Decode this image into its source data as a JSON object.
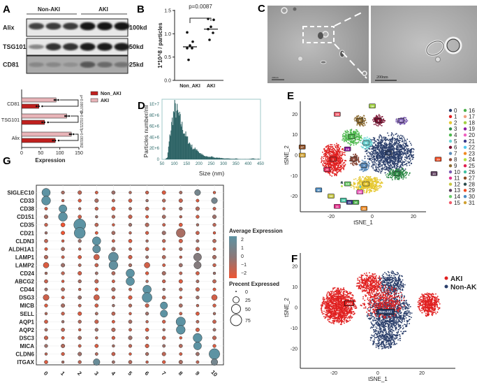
{
  "panels": {
    "A": "A",
    "B": "B",
    "C": "C",
    "D": "D",
    "E": "E",
    "F": "F",
    "G": "G"
  },
  "chart_data": [
    {
      "id": "A_blot",
      "type": "table",
      "groups": [
        "Non-AKI",
        "AKI"
      ],
      "rows": [
        {
          "protein": "Alix",
          "size": "100kd",
          "band_intensity": [
            0.7,
            0.75,
            0.75,
            0.95,
            0.95,
            0.95
          ]
        },
        {
          "protein": "TSG101",
          "size": "50kd",
          "band_intensity": [
            0.35,
            0.8,
            0.8,
            0.9,
            0.9,
            0.9
          ]
        },
        {
          "protein": "CD81",
          "size": "25kd",
          "band_intensity": [
            0.35,
            0.35,
            0.3,
            0.6,
            0.5,
            0.45
          ]
        }
      ]
    },
    {
      "id": "A_bar",
      "type": "bar",
      "orientation": "horizontal",
      "categories": [
        "CD81",
        "TSG101",
        "Alix"
      ],
      "series": [
        {
          "name": "Non_AKI",
          "color": "#c0201e",
          "values": [
            45,
            60,
            88
          ]
        },
        {
          "name": "AKI",
          "color": "#e8b4b8",
          "values": [
            90,
            118,
            130
          ]
        }
      ],
      "pvalues": [
        "p=0.000773",
        "p=0.012217",
        "p=0.001062"
      ],
      "xlabel": "Expression",
      "xlim": [
        0,
        150
      ],
      "xticks": [
        "0",
        "50",
        "100",
        "150"
      ],
      "legend": "top-right"
    },
    {
      "id": "B",
      "type": "scatter",
      "categories": [
        "Non_AKI",
        "AKI"
      ],
      "series": [
        {
          "name": "Non_AKI",
          "values": [
            1.03,
            0.83,
            0.75,
            0.69,
            0.69,
            0.44
          ],
          "median": 0.72
        },
        {
          "name": "AKI",
          "values": [
            1.32,
            1.3,
            1.15,
            1.1,
            1.02,
            0.87
          ],
          "median": 1.1
        }
      ],
      "ylabel": "1*10^8 / particles",
      "ylim": [
        0,
        1.5
      ],
      "yticks": [
        "0.0",
        "0.5",
        "1.0",
        "1.5"
      ],
      "annotation": "p=0.0087"
    },
    {
      "id": "C",
      "type": "image",
      "scale_bars": [
        "200nm",
        "200nm"
      ]
    },
    {
      "id": "D",
      "type": "bar",
      "xlabel": "Size (nm)",
      "ylabel": "Particles number/ml",
      "xlim": [
        50,
        450
      ],
      "ylim": [
        0,
        10000000
      ],
      "xticks": [
        "50",
        "100",
        "150",
        "200",
        "250",
        "300",
        "350",
        "400",
        "450"
      ],
      "yticks": [
        "0",
        "2E+6",
        "4E+6",
        "6E+6",
        "8E+6",
        "1E+7"
      ],
      "bin_start": 50,
      "bin_width": 10,
      "values_millions": [
        0,
        0,
        0.3,
        4,
        7,
        9.2,
        8.6,
        7.4,
        6,
        4.8,
        3.8,
        3,
        2.3,
        1.8,
        1.9,
        1.2,
        0.9,
        0.6,
        0.5,
        0.45,
        0.5,
        0.35,
        0.3,
        0.3,
        0.2,
        0.15,
        0.2,
        0.15,
        0.1,
        0.1,
        0.15,
        0.05,
        0.05,
        0.05,
        0.05,
        0.05,
        0.1,
        0.15,
        0.05,
        0.1
      ],
      "color": "#2e6466"
    },
    {
      "id": "E",
      "type": "scatter",
      "xlabel": "tSNE_1",
      "ylabel": "tSNE_2",
      "xticks": [
        "-20",
        "0",
        "20"
      ],
      "yticks": [
        "20",
        "10",
        "0",
        "-10",
        "-20"
      ],
      "legend": "right",
      "clusters": [
        {
          "id": "0",
          "color": "#2b3f6b",
          "center": [
            8,
            1
          ],
          "spread": [
            12,
            10
          ],
          "n": 1400
        },
        {
          "id": "1",
          "color": "#e02020",
          "center": [
            -19,
            -2
          ],
          "spread": [
            6,
            8
          ],
          "n": 700
        },
        {
          "id": "2",
          "color": "#e6c832",
          "center": [
            -3,
            -14
          ],
          "spread": [
            8,
            4
          ],
          "n": 500
        },
        {
          "id": "3",
          "color": "#2e8b47",
          "center": [
            12,
            -9
          ],
          "spread": [
            6,
            3
          ],
          "n": 220
        },
        {
          "id": "4",
          "color": "#4cb84c",
          "center": [
            -10,
            9
          ],
          "spread": [
            5,
            4
          ],
          "n": 260
        },
        {
          "id": "5",
          "color": "#6dd5d5",
          "center": [
            -3,
            6
          ],
          "spread": [
            3,
            3
          ],
          "n": 120
        },
        {
          "id": "6",
          "color": "#7a1030",
          "center": [
            3,
            17
          ],
          "spread": [
            3,
            3
          ],
          "n": 120
        },
        {
          "id": "7",
          "color": "#5a8ab8",
          "center": [
            -4,
            -5
          ],
          "spread": [
            3,
            3
          ],
          "n": 100
        },
        {
          "id": "8",
          "color": "#8b4a3a",
          "center": [
            -9,
            -2
          ],
          "spread": [
            3,
            3
          ],
          "n": 100
        },
        {
          "id": "9",
          "color": "#8b6a30",
          "center": [
            -6,
            17
          ],
          "spread": [
            3,
            3
          ],
          "n": 120
        },
        {
          "id": "10",
          "color": "#7a5ab0",
          "center": [
            14,
            17
          ],
          "spread": [
            3,
            2
          ],
          "n": 80
        },
        {
          "id": "11",
          "color": "#e0308a",
          "center": [
            -17,
            -25
          ],
          "spread": [
            0.5,
            0.5
          ],
          "n": 5
        },
        {
          "id": "12",
          "color": "#c8c840",
          "center": [
            -20,
            -20
          ],
          "spread": [
            0.5,
            0.5
          ],
          "n": 5
        },
        {
          "id": "13",
          "color": "#5a3a5a",
          "center": [
            30,
            -9
          ],
          "spread": [
            0.5,
            0.5
          ],
          "n": 5
        },
        {
          "id": "14",
          "color": "#6acc6a",
          "center": [
            -12,
            -14
          ],
          "spread": [
            0.5,
            0.5
          ],
          "n": 5
        },
        {
          "id": "15",
          "color": "#f05a6a",
          "center": [
            -17,
            20
          ],
          "spread": [
            0.5,
            0.5
          ],
          "n": 5
        },
        {
          "id": "16",
          "color": "#4ab04a",
          "center": [
            -8,
            -23
          ],
          "spread": [
            0.5,
            0.5
          ],
          "n": 5
        },
        {
          "id": "17",
          "color": "#f0a080",
          "center": [
            -34,
            0
          ],
          "spread": [
            0.5,
            0.5
          ],
          "n": 5
        },
        {
          "id": "18",
          "color": "#a0d040",
          "center": [
            0,
            24
          ],
          "spread": [
            0.5,
            0.5
          ],
          "n": 5
        },
        {
          "id": "19",
          "color": "#8a1aa0",
          "center": [
            -12,
            3
          ],
          "spread": [
            1,
            1
          ],
          "n": 10
        },
        {
          "id": "20",
          "color": "#f060c0",
          "center": [
            -6,
            -18
          ],
          "spread": [
            0.5,
            0.5
          ],
          "n": 5
        },
        {
          "id": "21",
          "color": "#3a3a8a",
          "center": [
            -11,
            -23
          ],
          "spread": [
            0.5,
            0.5
          ],
          "n": 5
        },
        {
          "id": "22",
          "color": "#50c8f0",
          "center": [
            -6,
            -15
          ],
          "spread": [
            0.5,
            0.5
          ],
          "n": 5
        },
        {
          "id": "23",
          "color": "#f08a20",
          "center": [
            -4,
            -26
          ],
          "spread": [
            0.5,
            0.5
          ],
          "n": 5
        },
        {
          "id": "24",
          "color": "#b0e040",
          "center": [
            -15,
            -15
          ],
          "spread": [
            0.5,
            0.5
          ],
          "n": 5
        },
        {
          "id": "25",
          "color": "#e02050",
          "center": [
            -22,
            -7
          ],
          "spread": [
            0.5,
            0.5
          ],
          "n": 5
        },
        {
          "id": "26",
          "color": "#40c0a0",
          "center": [
            -14,
            -22
          ],
          "spread": [
            0.5,
            0.5
          ],
          "n": 5
        },
        {
          "id": "27",
          "color": "#8a4a20",
          "center": [
            -34,
            4
          ],
          "spread": [
            0.5,
            0.5
          ],
          "n": 5
        },
        {
          "id": "28",
          "color": "#2a4a4a",
          "center": [
            -15,
            -13
          ],
          "spread": [
            0.5,
            0.5
          ],
          "n": 5
        },
        {
          "id": "29",
          "color": "#f04a20",
          "center": [
            32,
            -2
          ],
          "spread": [
            0.5,
            0.5
          ],
          "n": 5
        },
        {
          "id": "30",
          "color": "#4a8ac0",
          "center": [
            -26,
            -17
          ],
          "spread": [
            0.5,
            0.5
          ],
          "n": 5
        },
        {
          "id": "31",
          "color": "#d0a030",
          "center": [
            -34,
            0
          ],
          "spread": [
            0.5,
            0.5
          ],
          "n": 5
        }
      ],
      "labeled": [
        "0",
        "1",
        "2",
        "3",
        "4",
        "5",
        "6",
        "7",
        "8",
        "9",
        "10",
        "11",
        "12",
        "13",
        "14",
        "15",
        "16",
        "18",
        "19",
        "20",
        "21",
        "23",
        "25",
        "26",
        "27",
        "29",
        "30",
        "31"
      ]
    },
    {
      "id": "F",
      "type": "scatter",
      "xlabel": "tSNE_1",
      "ylabel": "tSNE_2",
      "xticks": [
        "-20",
        "0",
        "20"
      ],
      "yticks": [
        "20",
        "10",
        "0",
        "-10",
        "-20"
      ],
      "legend": "right",
      "series": [
        {
          "name": "AKI",
          "color": "#e02020",
          "label": "AKI",
          "label_pos": [
            -13,
            2
          ]
        },
        {
          "name": "Non-AKI",
          "color": "#2b3f6b",
          "label": "Non-AKI",
          "label_pos": [
            3.5,
            -2
          ]
        }
      ]
    },
    {
      "id": "G",
      "type": "scatter",
      "subtype": "dotplot",
      "genes": [
        "SIGLEC10",
        "CD33",
        "CD38",
        "CD151",
        "CD35",
        "CD21",
        "CLDN3",
        "ALDH1A1",
        "LAMP1",
        "LAMP2",
        "CD24",
        "ABCG2",
        "CD44",
        "DSG3",
        "MICB",
        "SELL",
        "AQP1",
        "AQP2",
        "DSC3",
        "MICA",
        "CLDN6",
        "ITGAX"
      ],
      "clusters": [
        "0",
        "1",
        "2",
        "3",
        "4",
        "5",
        "6",
        "7",
        "8",
        "9",
        "10"
      ],
      "default": {
        "pct": 7,
        "avg_exp": -1
      },
      "markers": [
        [
          "SIGLEC10",
          "0",
          40,
          2
        ],
        [
          "CD33",
          "0",
          45,
          2
        ],
        [
          "CD38",
          "1",
          35,
          2
        ],
        [
          "CD151",
          "1",
          45,
          2
        ],
        [
          "CD35",
          "2",
          80,
          2
        ],
        [
          "CD21",
          "2",
          70,
          2
        ],
        [
          "CLDN3",
          "3",
          40,
          2
        ],
        [
          "ALDH1A1",
          "3",
          35,
          1.8
        ],
        [
          "LAMP1",
          "4",
          55,
          1.8
        ],
        [
          "LAMP2",
          "4",
          45,
          1.8
        ],
        [
          "CD24",
          "5",
          40,
          2
        ],
        [
          "ABCG2",
          "5",
          40,
          2
        ],
        [
          "CD44",
          "6",
          40,
          2
        ],
        [
          "DSG3",
          "6",
          55,
          2
        ],
        [
          "MICB",
          "7",
          30,
          2
        ],
        [
          "SELL",
          "7",
          30,
          2
        ],
        [
          "AQP1",
          "8",
          50,
          2
        ],
        [
          "AQP2",
          "8",
          45,
          2
        ],
        [
          "DSC3",
          "9",
          45,
          2
        ],
        [
          "MICA",
          "9",
          35,
          2
        ],
        [
          "CLDN6",
          "10",
          65,
          2
        ],
        [
          "ITGAX",
          "3",
          25,
          1.5
        ],
        [
          "ITGAX",
          "10",
          25,
          1
        ],
        [
          "CD33",
          "10",
          20,
          1
        ],
        [
          "SIGLEC10",
          "9",
          20,
          1
        ],
        [
          "LAMP1",
          "9",
          35,
          0.3
        ],
        [
          "LAMP2",
          "9",
          30,
          0.3
        ],
        [
          "CD21",
          "8",
          45,
          -0.6
        ],
        [
          "CD35",
          "1",
          10,
          -2.2
        ],
        [
          "CD21",
          "1",
          8,
          -2.2
        ],
        [
          "DSG3",
          "0",
          20,
          -1.3
        ],
        [
          "LAMP2",
          "0",
          18,
          -1.6
        ],
        [
          "LAMP1",
          "3",
          18,
          -1.3
        ],
        [
          "DSG3",
          "3",
          18,
          -1.3
        ],
        [
          "LAMP2",
          "6",
          18,
          -1.4
        ],
        [
          "DSG3",
          "10",
          18,
          -1.4
        ]
      ],
      "color_legend": {
        "title": "Average Expression",
        "ticks": [
          "2",
          "1",
          "0",
          "−1",
          "−2"
        ],
        "range": [
          -2,
          2.3
        ],
        "low": "#ee5533",
        "mid": "#8c7878",
        "high": "#5d93a3"
      },
      "size_legend": {
        "title": "Precent Expressed",
        "ticks": [
          "0",
          "25",
          "50",
          "75"
        ]
      }
    }
  ]
}
